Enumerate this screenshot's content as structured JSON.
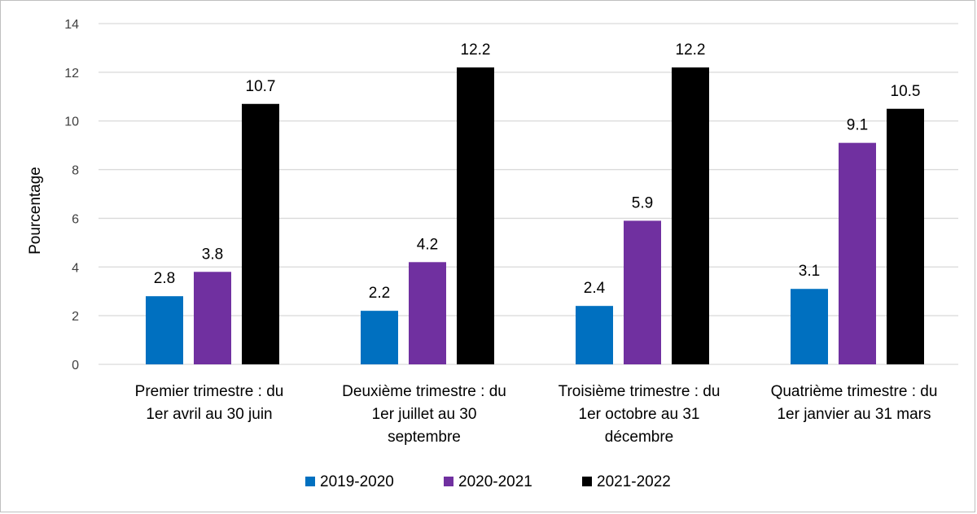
{
  "chart_data": {
    "type": "bar",
    "title": "",
    "xlabel": "",
    "ylabel": "Pourcentage",
    "ylim": [
      0,
      14
    ],
    "yticks": [
      0,
      2,
      4,
      6,
      8,
      10,
      12,
      14
    ],
    "grid": true,
    "legend_position": "bottom",
    "categories": [
      [
        "Premier trimestre : du",
        "1er avril au 30 juin"
      ],
      [
        "Deuxième trimestre : du",
        "1er juillet au 30",
        "septembre"
      ],
      [
        "Troisième trimestre : du",
        "1er octobre au 31",
        "décembre"
      ],
      [
        "Quatrième trimestre : du",
        "1er janvier au 31 mars"
      ]
    ],
    "series": [
      {
        "name": "2019-2020",
        "color": "#0070c0",
        "values": [
          2.8,
          2.2,
          2.4,
          3.1
        ]
      },
      {
        "name": "2020-2021",
        "color": "#7030a0",
        "values": [
          3.8,
          4.2,
          5.9,
          9.1
        ]
      },
      {
        "name": "2021-2022",
        "color": "#000000",
        "values": [
          10.7,
          12.2,
          12.2,
          10.5
        ]
      }
    ]
  }
}
